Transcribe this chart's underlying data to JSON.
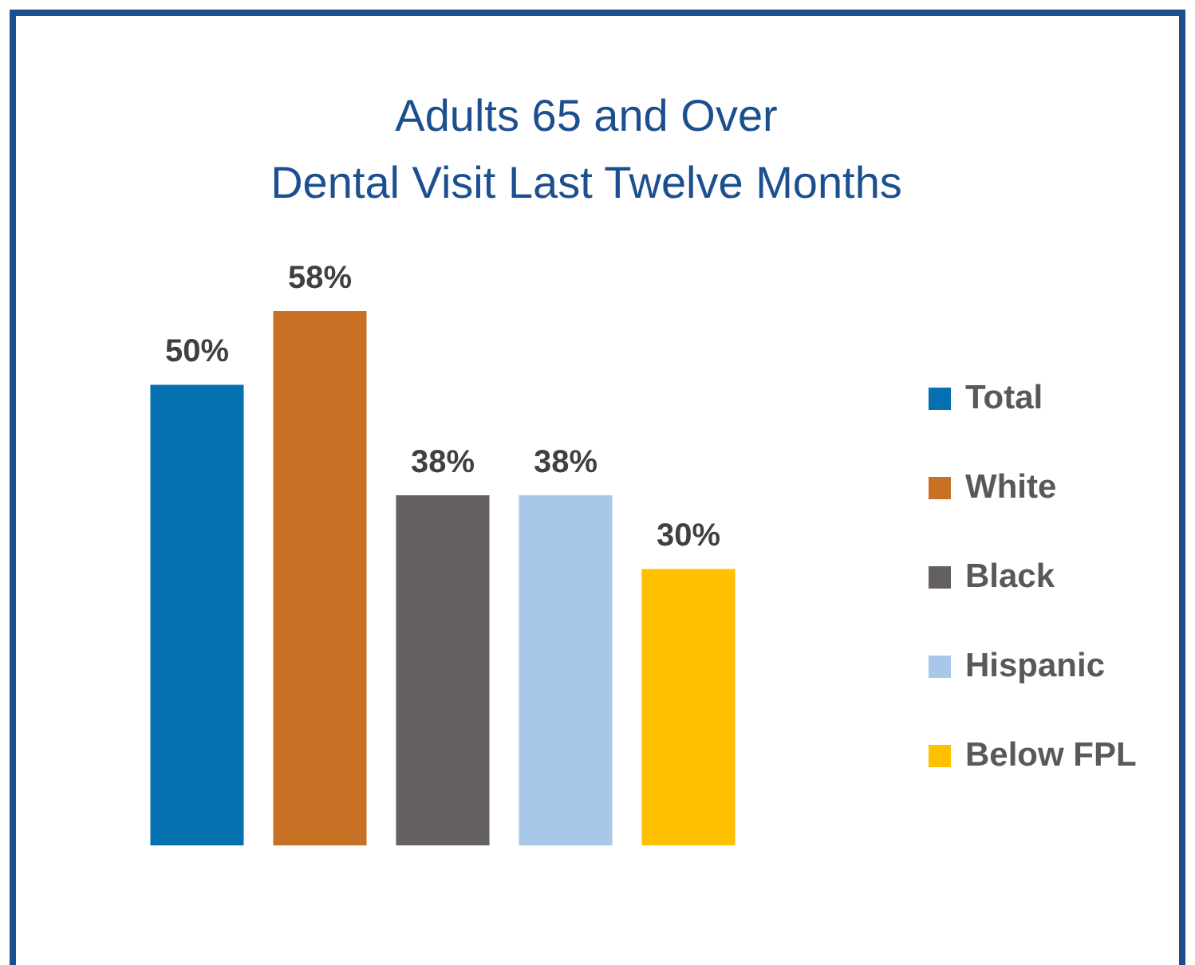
{
  "chart_data": {
    "type": "bar",
    "title": "Adults 65 and Over\nDental Visit Last Twelve Months",
    "categories": [
      null
    ],
    "series": [
      {
        "name": "Total",
        "color": "#0570b0",
        "values": [
          50
        ],
        "value_labels": [
          "50%"
        ]
      },
      {
        "name": "White",
        "color": "#c87125",
        "values": [
          58
        ],
        "value_labels": [
          "58%"
        ]
      },
      {
        "name": "Black",
        "color": "#646060",
        "values": [
          38
        ],
        "value_labels": [
          "38%"
        ]
      },
      {
        "name": "Hispanic",
        "color": "#a7c8e8",
        "values": [
          38
        ],
        "value_labels": [
          "38%"
        ]
      },
      {
        "name": "Below FPL",
        "color": "#ffc000",
        "values": [
          30
        ],
        "value_labels": [
          "30%"
        ]
      }
    ],
    "legend": "right",
    "tick_labels": false
  }
}
